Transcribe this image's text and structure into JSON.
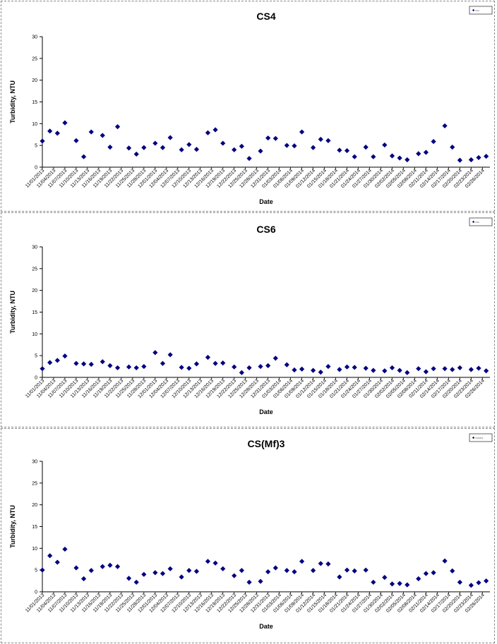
{
  "chart_data": [
    {
      "type": "scatter",
      "title": "CS4",
      "xlabel": "Date",
      "ylabel": "Turbidity, NTU",
      "ylim": [
        0,
        30
      ],
      "yticks": [
        0,
        5,
        10,
        15,
        20,
        25,
        30
      ],
      "xlim": [
        "11/01/2013",
        "02/28/2014"
      ],
      "xtick_labels": [
        "11/01/2013",
        "11/04/2013",
        "11/07/2013",
        "11/10/2013",
        "11/13/2013",
        "11/16/2013",
        "11/19/2013",
        "11/22/2013",
        "11/25/2013",
        "11/28/2013",
        "12/01/2013",
        "12/04/2013",
        "12/07/2013",
        "12/10/2013",
        "12/13/2013",
        "12/16/2013",
        "12/19/2013",
        "12/22/2013",
        "12/25/2013",
        "12/28/2013",
        "12/31/2013",
        "01/03/2014",
        "01/06/2014",
        "01/09/2014",
        "01/12/2014",
        "01/15/2014",
        "01/18/2014",
        "01/21/2014",
        "01/24/2014",
        "01/27/2014",
        "01/30/2014",
        "02/02/2014",
        "02/05/2014",
        "02/08/2014",
        "02/11/2014",
        "02/14/2014",
        "02/17/2014",
        "02/20/2014",
        "02/23/2014",
        "02/26/2014"
      ],
      "grid": false,
      "legend": "top-right",
      "marker_color": "#000080",
      "series": [
        {
          "name": "CS4",
          "points": [
            {
              "x": "11/01/2013",
              "y": 6.0
            },
            {
              "x": "11/03/2013",
              "y": 8.3
            },
            {
              "x": "11/05/2013",
              "y": 7.8
            },
            {
              "x": "11/07/2013",
              "y": 10.2
            },
            {
              "x": "11/10/2013",
              "y": 6.1
            },
            {
              "x": "11/12/2013",
              "y": 2.4
            },
            {
              "x": "11/14/2013",
              "y": 8.1
            },
            {
              "x": "11/17/2013",
              "y": 7.3
            },
            {
              "x": "11/19/2013",
              "y": 4.6
            },
            {
              "x": "11/21/2013",
              "y": 9.3
            },
            {
              "x": "11/24/2013",
              "y": 4.4
            },
            {
              "x": "11/26/2013",
              "y": 3.0
            },
            {
              "x": "11/28/2013",
              "y": 4.5
            },
            {
              "x": "12/01/2013",
              "y": 5.5
            },
            {
              "x": "12/03/2013",
              "y": 4.5
            },
            {
              "x": "12/05/2013",
              "y": 6.8
            },
            {
              "x": "12/08/2013",
              "y": 4.0
            },
            {
              "x": "12/10/2013",
              "y": 5.2
            },
            {
              "x": "12/12/2013",
              "y": 4.1
            },
            {
              "x": "12/15/2013",
              "y": 7.9
            },
            {
              "x": "12/17/2013",
              "y": 8.6
            },
            {
              "x": "12/19/2013",
              "y": 5.5
            },
            {
              "x": "12/22/2013",
              "y": 4.0
            },
            {
              "x": "12/24/2013",
              "y": 4.8
            },
            {
              "x": "12/26/2013",
              "y": 2.0
            },
            {
              "x": "12/29/2013",
              "y": 3.7
            },
            {
              "x": "12/31/2013",
              "y": 6.7
            },
            {
              "x": "01/02/2014",
              "y": 6.6
            },
            {
              "x": "01/05/2014",
              "y": 5.0
            },
            {
              "x": "01/07/2014",
              "y": 4.9
            },
            {
              "x": "01/09/2014",
              "y": 8.1
            },
            {
              "x": "01/12/2014",
              "y": 4.5
            },
            {
              "x": "01/14/2014",
              "y": 6.4
            },
            {
              "x": "01/16/2014",
              "y": 6.1
            },
            {
              "x": "01/19/2014",
              "y": 3.9
            },
            {
              "x": "01/21/2014",
              "y": 3.8
            },
            {
              "x": "01/23/2014",
              "y": 2.4
            },
            {
              "x": "01/26/2014",
              "y": 4.6
            },
            {
              "x": "01/28/2014",
              "y": 2.4
            },
            {
              "x": "01/31/2014",
              "y": 5.1
            },
            {
              "x": "02/02/2014",
              "y": 2.6
            },
            {
              "x": "02/04/2014",
              "y": 2.1
            },
            {
              "x": "02/06/2014",
              "y": 1.7
            },
            {
              "x": "02/09/2014",
              "y": 3.1
            },
            {
              "x": "02/11/2014",
              "y": 3.4
            },
            {
              "x": "02/13/2014",
              "y": 5.9
            },
            {
              "x": "02/16/2014",
              "y": 9.5
            },
            {
              "x": "02/18/2014",
              "y": 4.6
            },
            {
              "x": "02/20/2014",
              "y": 1.6
            },
            {
              "x": "02/23/2014",
              "y": 1.7
            },
            {
              "x": "02/25/2014",
              "y": 2.2
            },
            {
              "x": "02/27/2014",
              "y": 2.5
            }
          ]
        }
      ]
    },
    {
      "type": "scatter",
      "title": "CS6",
      "xlabel": "Date",
      "ylabel": "Turbidity, NTU",
      "ylim": [
        0,
        30
      ],
      "yticks": [
        0,
        5,
        10,
        15,
        20,
        25,
        30
      ],
      "xlim": [
        "11/01/2013",
        "02/28/2014"
      ],
      "xtick_labels": [
        "11/01/2013",
        "11/04/2013",
        "11/07/2013",
        "11/10/2013",
        "11/13/2013",
        "11/16/2013",
        "11/19/2013",
        "11/22/2013",
        "11/25/2013",
        "11/28/2013",
        "12/01/2013",
        "12/04/2013",
        "12/07/2013",
        "12/10/2013",
        "12/13/2013",
        "12/16/2013",
        "12/19/2013",
        "12/22/2013",
        "12/25/2013",
        "12/28/2013",
        "12/31/2013",
        "01/03/2014",
        "01/06/2014",
        "01/09/2014",
        "01/12/2014",
        "01/15/2014",
        "01/18/2014",
        "01/21/2014",
        "01/24/2014",
        "01/27/2014",
        "01/30/2014",
        "02/02/2014",
        "02/05/2014",
        "02/08/2014",
        "02/11/2014",
        "02/14/2014",
        "02/17/2014",
        "02/20/2014",
        "02/23/2014",
        "02/26/2014"
      ],
      "grid": false,
      "legend": "top-right",
      "marker_color": "#000080",
      "series": [
        {
          "name": "CS6",
          "points": [
            {
              "x": "11/01/2013",
              "y": 2.0
            },
            {
              "x": "11/03/2013",
              "y": 3.4
            },
            {
              "x": "11/05/2013",
              "y": 3.9
            },
            {
              "x": "11/07/2013",
              "y": 4.9
            },
            {
              "x": "11/10/2013",
              "y": 3.2
            },
            {
              "x": "11/12/2013",
              "y": 3.1
            },
            {
              "x": "11/14/2013",
              "y": 3.0
            },
            {
              "x": "11/17/2013",
              "y": 3.6
            },
            {
              "x": "11/19/2013",
              "y": 2.7
            },
            {
              "x": "11/21/2013",
              "y": 2.2
            },
            {
              "x": "11/24/2013",
              "y": 2.4
            },
            {
              "x": "11/26/2013",
              "y": 2.2
            },
            {
              "x": "11/28/2013",
              "y": 2.5
            },
            {
              "x": "12/01/2013",
              "y": 5.7
            },
            {
              "x": "12/03/2013",
              "y": 3.2
            },
            {
              "x": "12/05/2013",
              "y": 5.2
            },
            {
              "x": "12/08/2013",
              "y": 2.3
            },
            {
              "x": "12/10/2013",
              "y": 2.1
            },
            {
              "x": "12/12/2013",
              "y": 3.1
            },
            {
              "x": "12/15/2013",
              "y": 4.6
            },
            {
              "x": "12/17/2013",
              "y": 3.2
            },
            {
              "x": "12/19/2013",
              "y": 3.3
            },
            {
              "x": "12/22/2013",
              "y": 2.4
            },
            {
              "x": "12/24/2013",
              "y": 1.1
            },
            {
              "x": "12/26/2013",
              "y": 2.2
            },
            {
              "x": "12/29/2013",
              "y": 2.5
            },
            {
              "x": "12/31/2013",
              "y": 2.7
            },
            {
              "x": "01/02/2014",
              "y": 4.4
            },
            {
              "x": "01/05/2014",
              "y": 2.9
            },
            {
              "x": "01/07/2014",
              "y": 1.7
            },
            {
              "x": "01/09/2014",
              "y": 1.9
            },
            {
              "x": "01/12/2014",
              "y": 1.6
            },
            {
              "x": "01/14/2014",
              "y": 1.2
            },
            {
              "x": "01/16/2014",
              "y": 2.5
            },
            {
              "x": "01/19/2014",
              "y": 1.8
            },
            {
              "x": "01/21/2014",
              "y": 2.4
            },
            {
              "x": "01/23/2014",
              "y": 2.3
            },
            {
              "x": "01/26/2014",
              "y": 2.1
            },
            {
              "x": "01/28/2014",
              "y": 1.6
            },
            {
              "x": "01/31/2014",
              "y": 1.5
            },
            {
              "x": "02/02/2014",
              "y": 2.2
            },
            {
              "x": "02/04/2014",
              "y": 1.6
            },
            {
              "x": "02/06/2014",
              "y": 1.1
            },
            {
              "x": "02/09/2014",
              "y": 2.0
            },
            {
              "x": "02/11/2014",
              "y": 1.3
            },
            {
              "x": "02/13/2014",
              "y": 2.0
            },
            {
              "x": "02/16/2014",
              "y": 2.0
            },
            {
              "x": "02/18/2014",
              "y": 1.8
            },
            {
              "x": "02/20/2014",
              "y": 2.2
            },
            {
              "x": "02/23/2014",
              "y": 1.8
            },
            {
              "x": "02/25/2014",
              "y": 2.1
            },
            {
              "x": "02/27/2014",
              "y": 1.5
            }
          ]
        }
      ]
    },
    {
      "type": "scatter",
      "title": "CS(Mf)3",
      "xlabel": "Date",
      "ylabel": "Turbidity, NTU",
      "ylim": [
        0,
        30
      ],
      "yticks": [
        0,
        5,
        10,
        15,
        20,
        25,
        30
      ],
      "xlim": [
        "11/01/2013",
        "02/28/2014"
      ],
      "xtick_labels": [
        "11/01/2013",
        "11/04/2013",
        "11/07/2013",
        "11/10/2013",
        "11/13/2013",
        "11/16/2013",
        "11/19/2013",
        "11/22/2013",
        "11/25/2013",
        "11/28/2013",
        "12/01/2013",
        "12/04/2013",
        "12/07/2013",
        "12/10/2013",
        "12/13/2013",
        "12/16/2013",
        "12/19/2013",
        "12/22/2013",
        "12/25/2013",
        "12/28/2013",
        "12/31/2013",
        "01/03/2014",
        "01/06/2014",
        "01/09/2014",
        "01/12/2014",
        "01/15/2014",
        "01/18/2014",
        "01/21/2014",
        "01/24/2014",
        "01/27/2014",
        "01/30/2014",
        "02/02/2014",
        "02/05/2014",
        "02/08/2014",
        "02/11/2014",
        "02/14/2014",
        "02/17/2014",
        "02/20/2014",
        "02/23/2014",
        "02/26/2014"
      ],
      "grid": false,
      "legend": "top-right",
      "marker_color": "#000080",
      "series": [
        {
          "name": "CS(Mf)3",
          "points": [
            {
              "x": "11/01/2013",
              "y": 5.0
            },
            {
              "x": "11/03/2013",
              "y": 8.3
            },
            {
              "x": "11/05/2013",
              "y": 6.8
            },
            {
              "x": "11/07/2013",
              "y": 9.8
            },
            {
              "x": "11/10/2013",
              "y": 5.5
            },
            {
              "x": "11/12/2013",
              "y": 3.0
            },
            {
              "x": "11/14/2013",
              "y": 4.9
            },
            {
              "x": "11/17/2013",
              "y": 5.8
            },
            {
              "x": "11/19/2013",
              "y": 6.1
            },
            {
              "x": "11/21/2013",
              "y": 5.8
            },
            {
              "x": "11/24/2013",
              "y": 3.1
            },
            {
              "x": "11/26/2013",
              "y": 2.2
            },
            {
              "x": "11/28/2013",
              "y": 4.0
            },
            {
              "x": "12/01/2013",
              "y": 4.4
            },
            {
              "x": "12/03/2013",
              "y": 4.2
            },
            {
              "x": "12/05/2013",
              "y": 5.3
            },
            {
              "x": "12/08/2013",
              "y": 3.4
            },
            {
              "x": "12/10/2013",
              "y": 4.9
            },
            {
              "x": "12/12/2013",
              "y": 4.7
            },
            {
              "x": "12/15/2013",
              "y": 7.0
            },
            {
              "x": "12/17/2013",
              "y": 6.6
            },
            {
              "x": "12/19/2013",
              "y": 5.3
            },
            {
              "x": "12/22/2013",
              "y": 3.7
            },
            {
              "x": "12/24/2013",
              "y": 4.9
            },
            {
              "x": "12/26/2013",
              "y": 2.2
            },
            {
              "x": "12/29/2013",
              "y": 2.4
            },
            {
              "x": "12/31/2013",
              "y": 4.6
            },
            {
              "x": "01/02/2014",
              "y": 5.5
            },
            {
              "x": "01/05/2014",
              "y": 4.9
            },
            {
              "x": "01/07/2014",
              "y": 4.6
            },
            {
              "x": "01/09/2014",
              "y": 7.0
            },
            {
              "x": "01/12/2014",
              "y": 4.9
            },
            {
              "x": "01/14/2014",
              "y": 6.5
            },
            {
              "x": "01/16/2014",
              "y": 6.4
            },
            {
              "x": "01/19/2014",
              "y": 3.4
            },
            {
              "x": "01/21/2014",
              "y": 5.0
            },
            {
              "x": "01/23/2014",
              "y": 4.8
            },
            {
              "x": "01/26/2014",
              "y": 5.0
            },
            {
              "x": "01/28/2014",
              "y": 2.2
            },
            {
              "x": "01/31/2014",
              "y": 3.3
            },
            {
              "x": "02/02/2014",
              "y": 1.8
            },
            {
              "x": "02/04/2014",
              "y": 1.9
            },
            {
              "x": "02/06/2014",
              "y": 1.6
            },
            {
              "x": "02/09/2014",
              "y": 3.0
            },
            {
              "x": "02/11/2014",
              "y": 4.2
            },
            {
              "x": "02/13/2014",
              "y": 4.4
            },
            {
              "x": "02/16/2014",
              "y": 7.1
            },
            {
              "x": "02/18/2014",
              "y": 4.8
            },
            {
              "x": "02/20/2014",
              "y": 2.2
            },
            {
              "x": "02/23/2014",
              "y": 1.5
            },
            {
              "x": "02/25/2014",
              "y": 2.1
            },
            {
              "x": "02/27/2014",
              "y": 2.5
            }
          ]
        }
      ]
    }
  ]
}
